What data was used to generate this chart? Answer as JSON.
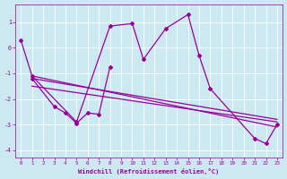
{
  "xlabel": "Windchill (Refroidissement éolien,°C)",
  "background_color": "#cce8f0",
  "line_color": "#990099",
  "xlim": [
    -0.5,
    23.5
  ],
  "ylim": [
    -4.3,
    1.7
  ],
  "yticks": [
    -4,
    -3,
    -2,
    -1,
    0,
    1
  ],
  "xticks": [
    0,
    1,
    2,
    3,
    4,
    5,
    6,
    7,
    8,
    9,
    10,
    11,
    12,
    13,
    14,
    15,
    16,
    17,
    18,
    19,
    20,
    21,
    22,
    23
  ],
  "main_line_x": [
    0,
    1,
    5,
    8,
    10,
    11,
    13,
    15,
    16,
    17,
    21,
    22,
    23
  ],
  "main_line_y": [
    0.3,
    -1.1,
    -2.9,
    0.85,
    0.95,
    -0.45,
    0.75,
    1.3,
    -0.3,
    -1.6,
    -3.55,
    -3.75,
    -3.0
  ],
  "left_line_x": [
    1,
    3,
    4,
    5,
    6,
    7,
    8
  ],
  "left_line_y": [
    -1.2,
    -2.3,
    -2.55,
    -2.95,
    -2.55,
    -2.6,
    -0.75
  ],
  "trend1_x": [
    1,
    23
  ],
  "trend1_y": [
    -1.2,
    -2.8
  ],
  "trend2_x": [
    1,
    23
  ],
  "trend2_y": [
    -1.5,
    -2.9
  ],
  "trend3_x": [
    1,
    23
  ],
  "trend3_y": [
    -1.1,
    -3.1
  ]
}
